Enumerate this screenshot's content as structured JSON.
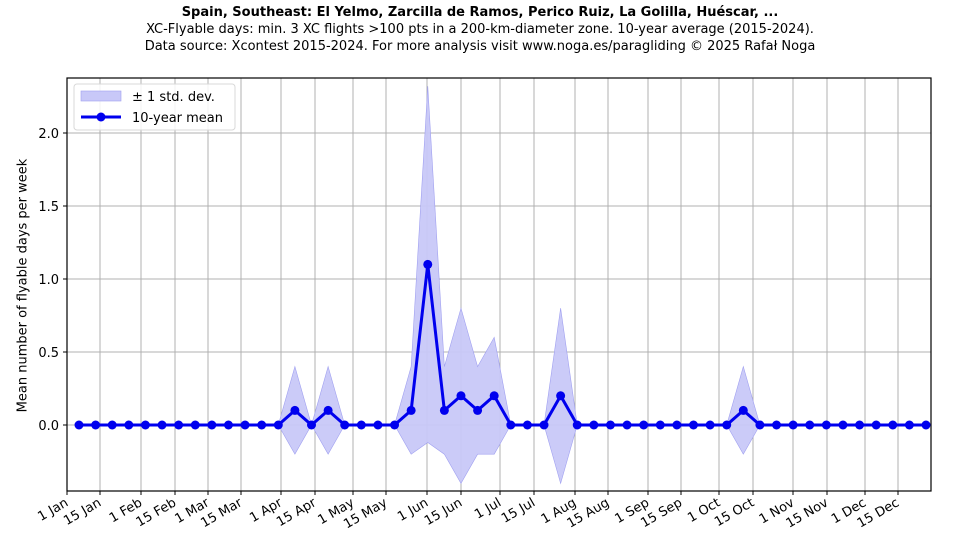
{
  "header": {
    "title": "Spain, Southeast: El Yelmo, Zarcilla de Ramos, Perico Ruiz, La Golilla, Huéscar, ...",
    "subtitle1": "XC-Flyable days: min. 3 XC flights >100 pts in a 200-km-diameter zone. 10-year average (2015-2024).",
    "subtitle2": "Data source: Xcontest 2015-2024. For more analysis visit www.noga.es/paragliding © 2025 Rafał Noga"
  },
  "legend": {
    "band_label": "± 1 std. dev.",
    "line_label": "10-year mean"
  },
  "colors": {
    "line": "#0000ee",
    "band": "#c8c8f8",
    "band_edge": "#a0a0f0",
    "grid": "#b0b0b0"
  },
  "chart_data": {
    "type": "line",
    "title": "Spain, Southeast: El Yelmo, Zarcilla de Ramos, Perico Ruiz, La Golilla, Huéscar, ...",
    "xlabel": "",
    "ylabel": "Mean number of flyable days per week",
    "ylim": [
      -0.45,
      2.4
    ],
    "yticks": [
      0.0,
      0.5,
      1.0,
      1.5,
      2.0
    ],
    "ytick_labels": [
      "0.0",
      "0.5",
      "1.0",
      "1.5",
      "2.0"
    ],
    "xtick_labels": [
      "1 Jan",
      "15 Jan",
      "1 Feb",
      "15 Feb",
      "1 Mar",
      "15 Mar",
      "1 Apr",
      "15 Apr",
      "1 May",
      "15 May",
      "1 Jun",
      "15 Jun",
      "1 Jul",
      "15 Jul",
      "1 Aug",
      "15 Aug",
      "1 Sep",
      "15 Sep",
      "1 Oct",
      "15 Oct",
      "1 Nov",
      "15 Nov",
      "1 Dec",
      "15 Dec"
    ],
    "grid": true,
    "legend_position": "upper left",
    "x_weeks": [
      1,
      2,
      3,
      4,
      5,
      6,
      7,
      8,
      9,
      10,
      11,
      12,
      13,
      14,
      15,
      16,
      17,
      18,
      19,
      20,
      21,
      22,
      23,
      24,
      25,
      26,
      27,
      28,
      29,
      30,
      31,
      32,
      33,
      34,
      35,
      36,
      37,
      38,
      39,
      40,
      41,
      42,
      43,
      44,
      45,
      46,
      47,
      48,
      49,
      50,
      51,
      52
    ],
    "series": [
      {
        "name": "10-year mean",
        "values": [
          0,
          0,
          0,
          0,
          0,
          0,
          0,
          0,
          0,
          0,
          0,
          0,
          0,
          0.1,
          0,
          0.1,
          0,
          0,
          0,
          0,
          0.1,
          1.1,
          0.1,
          0.2,
          0.1,
          0.2,
          0,
          0,
          0,
          0.2,
          0,
          0,
          0,
          0,
          0,
          0,
          0,
          0,
          0,
          0,
          0.1,
          0,
          0,
          0,
          0,
          0,
          0,
          0,
          0,
          0,
          0,
          0
        ]
      },
      {
        "name": "± 1 std. dev. upper",
        "values": [
          0,
          0,
          0,
          0,
          0,
          0,
          0,
          0,
          0,
          0,
          0,
          0,
          0,
          0.4,
          0,
          0.4,
          0,
          0,
          0,
          0,
          0.4,
          2.32,
          0.4,
          0.8,
          0.4,
          0.6,
          0,
          0,
          0,
          0.8,
          0,
          0,
          0,
          0,
          0,
          0,
          0,
          0,
          0,
          0,
          0.4,
          0,
          0,
          0,
          0,
          0,
          0,
          0,
          0,
          0,
          0,
          0
        ]
      },
      {
        "name": "± 1 std. dev. lower",
        "values": [
          0,
          0,
          0,
          0,
          0,
          0,
          0,
          0,
          0,
          0,
          0,
          0,
          0,
          -0.2,
          0,
          -0.2,
          0,
          0,
          0,
          0,
          -0.2,
          -0.12,
          -0.2,
          -0.4,
          -0.2,
          -0.2,
          0,
          0,
          0,
          -0.4,
          0,
          0,
          0,
          0,
          0,
          0,
          0,
          0,
          0,
          0,
          -0.2,
          0,
          0,
          0,
          0,
          0,
          0,
          0,
          0,
          0,
          0,
          0
        ]
      }
    ]
  }
}
